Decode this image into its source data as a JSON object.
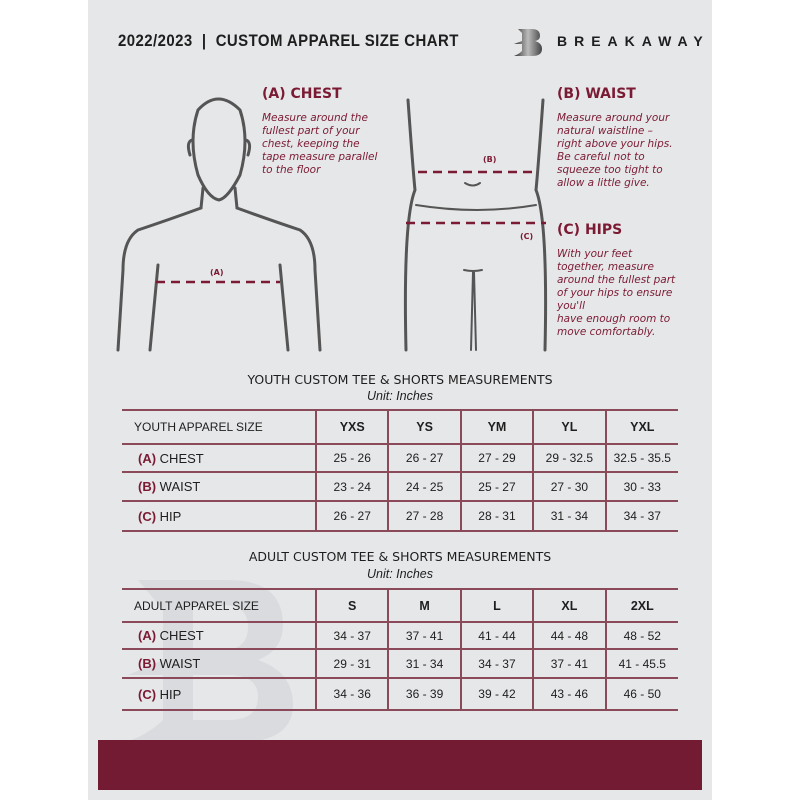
{
  "header": {
    "title": "2022/2023  |  CUSTOM APPAREL SIZE CHART",
    "brand": "BREAKAWAY",
    "logo_letter": "B"
  },
  "colors": {
    "accent": "#7b1a33",
    "footer": "#721b33",
    "background": "#e6e7e9"
  },
  "chest": {
    "heading": "(A) CHEST",
    "desc": [
      "Measure around the",
      "fullest part of your",
      "chest, keeping the",
      "tape measure parallel",
      "to the floor"
    ],
    "tag": "(A)"
  },
  "waist": {
    "heading": "(B) WAIST",
    "desc": [
      "Measure around your",
      "natural waistline –",
      "right above your hips.",
      "Be careful not to",
      "squeeze too tight to",
      "allow a little give."
    ],
    "tag": "(B)"
  },
  "hips": {
    "heading": "(C) HIPS",
    "desc": [
      "With your feet",
      "together, measure",
      "around the fullest part",
      "of your hips to ensure",
      "you'll",
      "have enough room to",
      "move comfortably."
    ],
    "tag": "(C)"
  },
  "youth": {
    "title": "YOUTH CUSTOM TEE & SHORTS MEASUREMENTS",
    "unit": "Unit: Inches",
    "header_label": "YOUTH APPAREL SIZE",
    "sizes": [
      "YXS",
      "YS",
      "YM",
      "YL",
      "YXL"
    ],
    "rows": [
      {
        "code": "(A)",
        "label": "CHEST",
        "values": [
          "25 - 26",
          "26 - 27",
          "27 - 29",
          "29 - 32.5",
          "32.5 - 35.5"
        ]
      },
      {
        "code": "(B)",
        "label": "WAIST",
        "values": [
          "23 - 24",
          "24 - 25",
          "25 - 27",
          "27 - 30",
          "30 - 33"
        ]
      },
      {
        "code": "(C)",
        "label": "HIP",
        "values": [
          "26 - 27",
          "27 - 28",
          "28 - 31",
          "31 - 34",
          "34 - 37"
        ]
      }
    ]
  },
  "adult": {
    "title": "ADULT CUSTOM TEE & SHORTS MEASUREMENTS",
    "unit": "Unit: Inches",
    "header_label": "ADULT APPAREL SIZE",
    "sizes": [
      "S",
      "M",
      "L",
      "XL",
      "2XL"
    ],
    "rows": [
      {
        "code": "(A)",
        "label": "CHEST",
        "values": [
          "34 - 37",
          "37 - 41",
          "41 - 44",
          "44 - 48",
          "48 - 52"
        ]
      },
      {
        "code": "(B)",
        "label": "WAIST",
        "values": [
          "29 - 31",
          "31 - 34",
          "34 - 37",
          "37 - 41",
          "41 - 45.5"
        ]
      },
      {
        "code": "(C)",
        "label": "HIP",
        "values": [
          "34 - 36",
          "36 - 39",
          "39 - 42",
          "43 - 46",
          "46 - 50"
        ]
      }
    ]
  }
}
